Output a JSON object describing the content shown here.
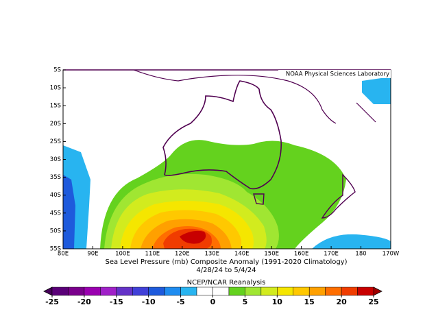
{
  "chart_data": {
    "type": "map",
    "title": "Sea Level Pressure (mb) Composite Anomaly (1991-2020 Climatology)",
    "subtitle": "4/28/24  to 5/4/24",
    "source": "NCEP/NCAR Reanalysis",
    "credit": "NOAA Physical Sciences Laboratory",
    "x_labels": [
      "80E",
      "90E",
      "100E",
      "110E",
      "120E",
      "130E",
      "140E",
      "150E",
      "160E",
      "170E",
      "180",
      "170W"
    ],
    "y_labels": [
      "5S",
      "10S",
      "15S",
      "20S",
      "25S",
      "30S",
      "35S",
      "40S",
      "45S",
      "50S",
      "55S"
    ],
    "colorbar": {
      "ticks": [
        -25,
        -20,
        -15,
        -10,
        -5,
        0,
        5,
        10,
        15,
        20,
        25
      ],
      "colors": [
        "#5a0078",
        "#7a008c",
        "#9a00b0",
        "#a020c8",
        "#6432c8",
        "#4040d8",
        "#1e5adc",
        "#1e8cf0",
        "#28b4f0",
        "#ffffff",
        "#ffffff",
        "#64d21e",
        "#a0e632",
        "#d2eb1e",
        "#f5e600",
        "#ffc800",
        "#ffa000",
        "#ff6e00",
        "#f03c00",
        "#c80000"
      ],
      "under_color": "#46005a",
      "over_color": "#a00000"
    }
  }
}
